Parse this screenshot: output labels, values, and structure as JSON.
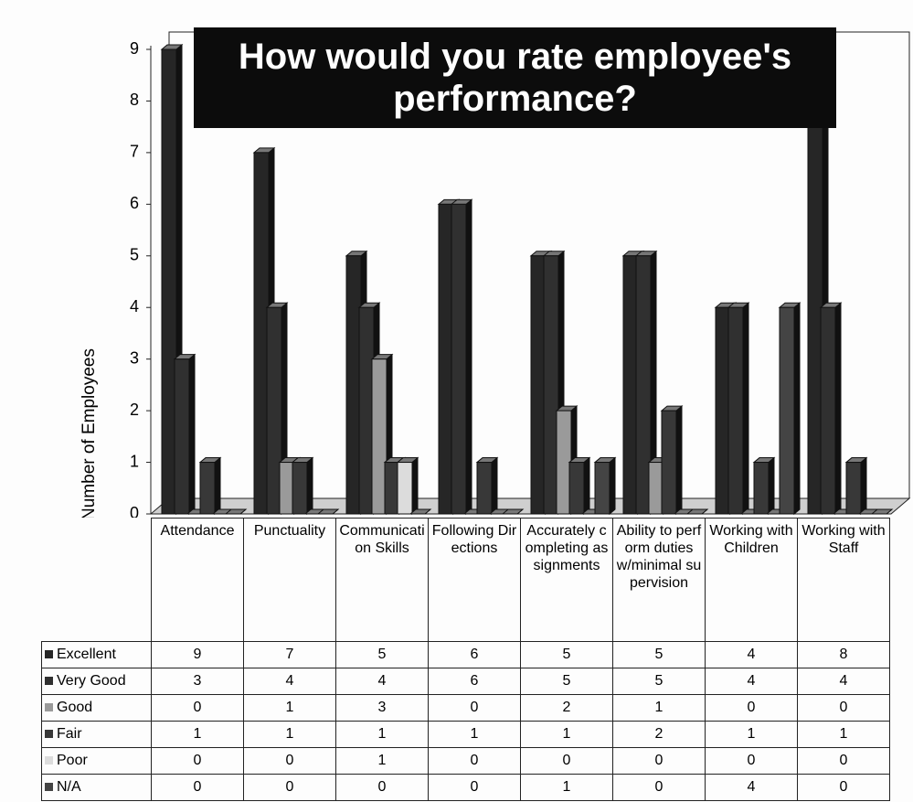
{
  "chart_data": {
    "type": "bar",
    "title": "How would you rate employee's performance?",
    "y_label": "Number of Employees",
    "categories": [
      "Attendance",
      "Punctuality",
      "Communication Skills",
      "Following Directions",
      "Accurately completing assignments",
      "Ability to perform duties w/minimal supervision",
      "Working with Children",
      "Working with Staff"
    ],
    "series": [
      {
        "name": "Excellent",
        "color": "#262626",
        "values": [
          9,
          7,
          5,
          6,
          5,
          5,
          4,
          8
        ]
      },
      {
        "name": "Very Good",
        "color": "#303030",
        "values": [
          3,
          4,
          4,
          6,
          5,
          5,
          4,
          4
        ]
      },
      {
        "name": "Good",
        "color": "#9a9a9a",
        "values": [
          0,
          1,
          3,
          0,
          2,
          1,
          0,
          0
        ]
      },
      {
        "name": "Fair",
        "color": "#383838",
        "values": [
          1,
          1,
          1,
          1,
          1,
          2,
          1,
          1
        ]
      },
      {
        "name": "Poor",
        "color": "#dcdcdc",
        "values": [
          0,
          0,
          1,
          0,
          0,
          0,
          0,
          0
        ]
      },
      {
        "name": "N/A",
        "color": "#444444",
        "values": [
          0,
          0,
          0,
          0,
          1,
          0,
          4,
          0
        ]
      }
    ],
    "ylim": [
      0,
      9
    ],
    "yticks": [
      0,
      1,
      2,
      3,
      4,
      5,
      6,
      7,
      8,
      9
    ]
  }
}
